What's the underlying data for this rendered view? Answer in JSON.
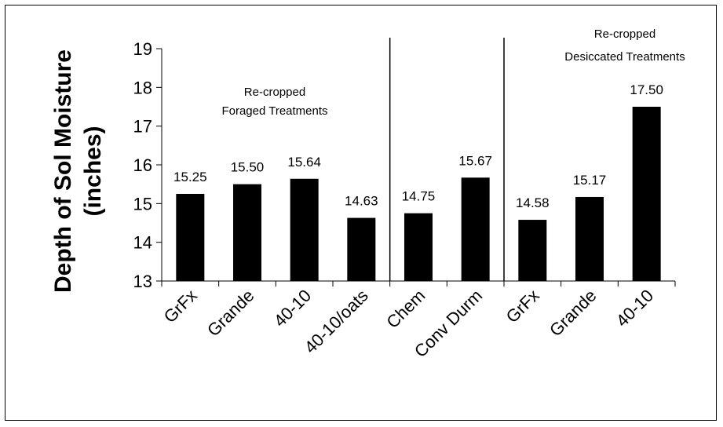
{
  "chart_data": {
    "type": "bar",
    "title": "",
    "xlabel": "",
    "ylabel_lines": [
      "Depth of Sol Moisture",
      "(inches)"
    ],
    "ylim": [
      13,
      19
    ],
    "yticks": [
      "13",
      "14",
      "15",
      "16",
      "17",
      "18",
      "19"
    ],
    "grid": false,
    "legend": "none",
    "bar_color": "#000000",
    "categories": [
      "GrFx",
      "Grande",
      "40-10",
      "40-10/oats",
      "Chem",
      "Conv Durm",
      "GrFx",
      "Grande",
      "40-10"
    ],
    "values": [
      15.25,
      15.5,
      15.64,
      14.63,
      14.75,
      15.67,
      14.58,
      15.17,
      17.5
    ],
    "data_labels": [
      "15.25",
      "15.50",
      "15.64",
      "14.63",
      "14.75",
      "15.67",
      "14.58",
      "15.17",
      "17.50"
    ],
    "separators_after_index": [
      3,
      5
    ],
    "annotations": [
      {
        "lines": [
          "Re-cropped",
          "Foraged Treatments"
        ]
      },
      {
        "lines": [
          "Re-cropped",
          "Desiccated Treatments"
        ]
      }
    ]
  }
}
